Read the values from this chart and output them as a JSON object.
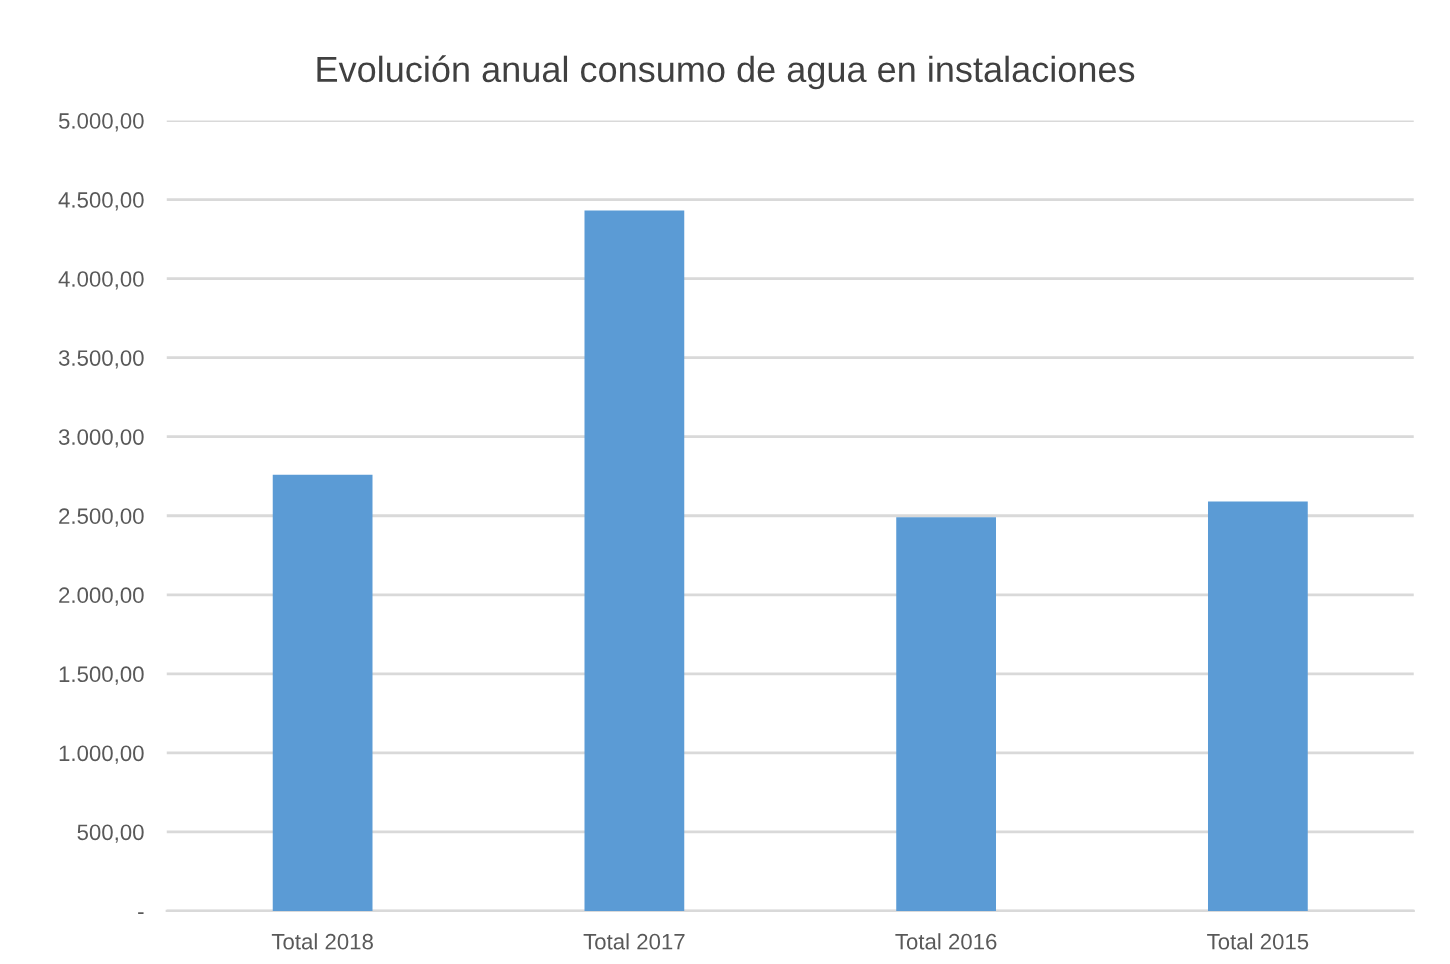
{
  "chart_data": {
    "type": "bar",
    "title": "Evolución anual consumo de agua en instalaciones",
    "categories": [
      "Total 2018",
      "Total 2017",
      "Total 2016",
      "Total 2015"
    ],
    "values": [
      2760,
      4430,
      2490,
      2590
    ],
    "color": "#5b9bd5",
    "ylim": [
      0,
      5000
    ],
    "yticks": [
      {
        "value": 0,
        "label": "-"
      },
      {
        "value": 500,
        "label": "500,00"
      },
      {
        "value": 1000,
        "label": "1.000,00"
      },
      {
        "value": 1500,
        "label": "1.500,00"
      },
      {
        "value": 2000,
        "label": "2.000,00"
      },
      {
        "value": 2500,
        "label": "2.500,00"
      },
      {
        "value": 3000,
        "label": "3.000,00"
      },
      {
        "value": 3500,
        "label": "3.500,00"
      },
      {
        "value": 4000,
        "label": "4.000,00"
      },
      {
        "value": 4500,
        "label": "4.500,00"
      },
      {
        "value": 5000,
        "label": "5.000,00"
      }
    ],
    "grid": "y"
  }
}
